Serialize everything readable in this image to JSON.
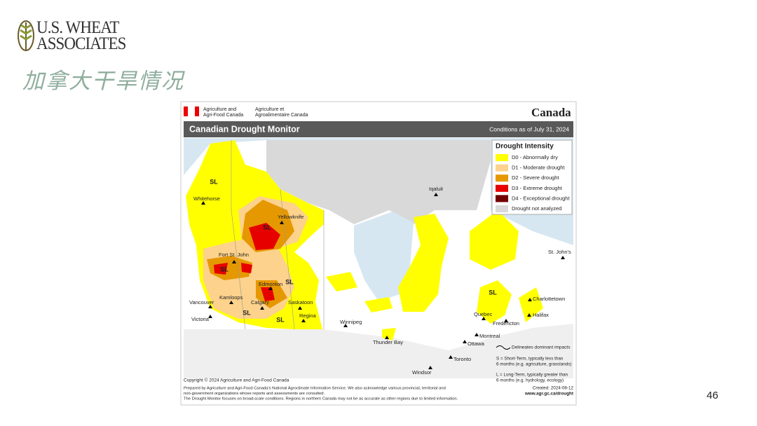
{
  "logo": {
    "line1": "U.S. WHEAT",
    "line2": "ASSOCIATES"
  },
  "slide_title": "加拿大干旱情况",
  "map": {
    "agency_en": [
      "Agriculture and",
      "Agri-Food Canada"
    ],
    "agency_fr": [
      "Agriculture et",
      "Agroalimentaire Canada"
    ],
    "wordmark": "Canada",
    "title": "Canadian Drought Monitor",
    "conditions": "Conditions as of July 31, 2024",
    "legend": {
      "title": "Drought Intensity",
      "items": [
        {
          "label": "D0 - Abnormally dry",
          "color": "#ffff00"
        },
        {
          "label": "D1 - Moderate drought",
          "color": "#fcd28c"
        },
        {
          "label": "D2 - Severe drought",
          "color": "#e69800"
        },
        {
          "label": "D3 - Extreme drought",
          "color": "#e60000"
        },
        {
          "label": "D4 - Exceptional drought",
          "color": "#730000"
        },
        {
          "label": "Drought not analyzed",
          "color": "#d9d9d9"
        }
      ]
    },
    "places": [
      "Whitehorse",
      "Yellowknife",
      "Iqaluit",
      "Fort St. John",
      "Edmonton",
      "Kamloops",
      "Vancouver",
      "Calgary",
      "Saskatoon",
      "Victoria",
      "Regina",
      "Winnipeg",
      "Thunder Bay",
      "Quebec",
      "Fredericton",
      "Charlottetown",
      "Halifax",
      "St. John's",
      "Montreal",
      "Ottawa",
      "Toronto",
      "Windsor"
    ],
    "impact_labels": [
      "SL",
      "SL",
      "SL",
      "SL",
      "SL",
      "SL",
      "SL"
    ],
    "impact_notes": {
      "line": "Delineates dominant impacts",
      "short_term": [
        "S = Short-Term, typically less than",
        "6 months (e.g. agriculture, grasslands)"
      ],
      "long_term": [
        "L = Long-Term, typically greater than",
        "6 months (e.g. hydrology, ecology)"
      ]
    },
    "copyright": "Copyright © 2024 Agriculture and Agri-Food Canada",
    "footer": [
      "Prepared by Agriculture and Agri-Food Canada's National Agroclimate Information Service.  We also acknowledge various provincial, territorial and",
      "non-government organizations whose reports and assessments are consulted.",
      "The Drought Monitor focuses on broad-scale conditions.  Regions in northern Canada may not be as accurate as other regions due to limited information."
    ],
    "created": "Created: 2024-08-12",
    "url": "www.agr.gc.ca/drought"
  },
  "page_number": "46"
}
